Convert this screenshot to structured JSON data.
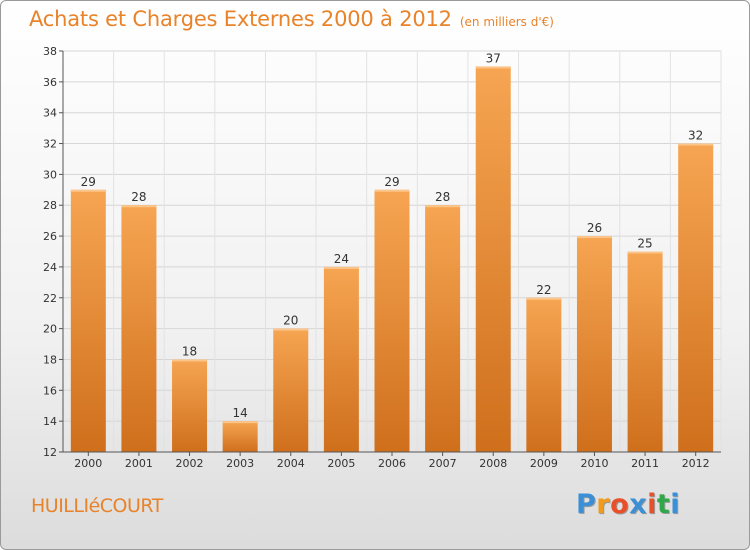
{
  "title": "Achats et Charges Externes 2000 à 2012",
  "subtitle": "(en milliers d'€)",
  "location": "HUILLIéCOURT",
  "logo": {
    "letters": [
      "P",
      "r",
      "o",
      "x",
      "i",
      "t",
      "i"
    ],
    "colors": [
      "#3a8fd6",
      "#f29a1d",
      "#e8502a",
      "#3a8fd6",
      "#e8502a",
      "#2fa84a",
      "#3a8fd6"
    ]
  },
  "colors": {
    "accent": "#e8832a",
    "bar_top": "#f6a552",
    "bar_bottom": "#cf6f1c"
  },
  "chart_data": {
    "type": "bar",
    "categories": [
      "2000",
      "2001",
      "2002",
      "2003",
      "2004",
      "2005",
      "2006",
      "2007",
      "2008",
      "2009",
      "2010",
      "2011",
      "2012"
    ],
    "values": [
      29,
      28,
      18,
      14,
      20,
      24,
      29,
      28,
      37,
      22,
      26,
      25,
      32
    ],
    "ylim": [
      12,
      38
    ],
    "yticks": [
      12,
      14,
      16,
      18,
      20,
      22,
      24,
      26,
      28,
      30,
      32,
      34,
      36,
      38
    ],
    "grid": true,
    "data_labels": true
  }
}
